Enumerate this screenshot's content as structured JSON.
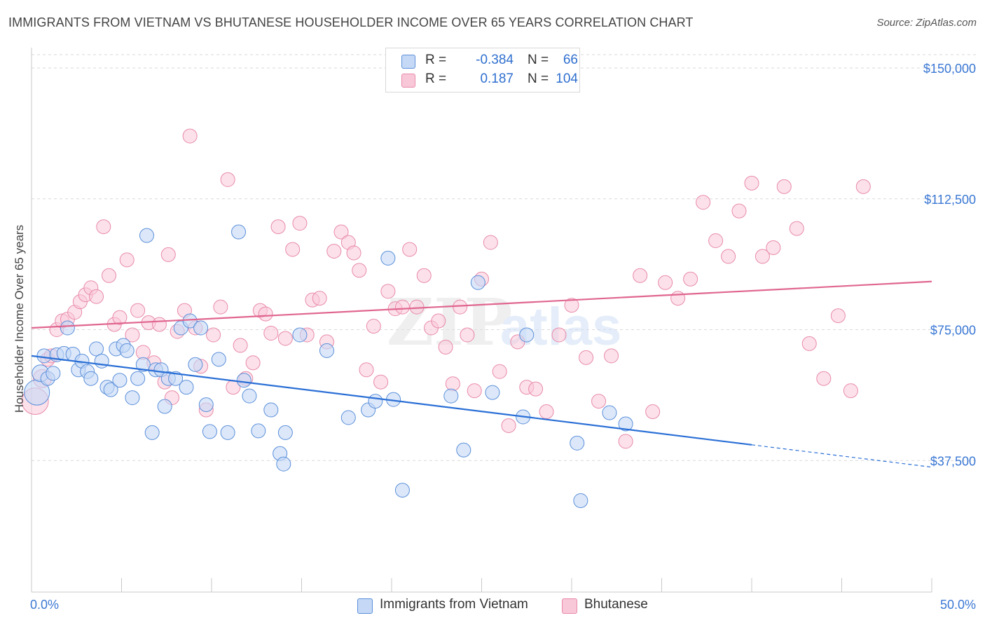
{
  "title": "IMMIGRANTS FROM VIETNAM VS BHUTANESE HOUSEHOLDER INCOME OVER 65 YEARS CORRELATION CHART",
  "source": "Source: ZipAtlas.com",
  "watermark": {
    "zip": "ZIP",
    "atlas": "atlas"
  },
  "legend": {
    "rows": [
      {
        "r_label": "R =",
        "r_value": "-0.384",
        "n_label": "N =",
        "n_value": "66"
      },
      {
        "r_label": "R =",
        "r_value": "0.187",
        "n_label": "N =",
        "n_value": "104"
      }
    ]
  },
  "bottom_legend": [
    "Immigrants from Vietnam",
    "Bhutanese"
  ],
  "colors": {
    "vietnam_fill": "#c5d9f7",
    "vietnam_stroke": "#5b8fd9",
    "vietnam_line": "#2a6fd6",
    "bhutan_fill": "#f9c8d8",
    "bhutan_stroke": "#e88aa8",
    "bhutan_line": "#e0668f",
    "tick_label": "#3b78d4",
    "grid": "#d9d9d9"
  },
  "chart_data": {
    "type": "scatter",
    "title": "IMMIGRANTS FROM VIETNAM VS BHUTANESE HOUSEHOLDER INCOME OVER 65 YEARS CORRELATION CHART",
    "xlabel": "",
    "ylabel": "Householder Income Over 65 years",
    "xlim": [
      0,
      50
    ],
    "ylim": [
      0,
      157000
    ],
    "x_tick_labels": [
      "0.0%",
      "50.0%"
    ],
    "y_ticks": [
      37500,
      75000,
      112500,
      150000
    ],
    "y_tick_labels": [
      "$37,500",
      "$75,000",
      "$112,500",
      "$150,000"
    ],
    "grid": true,
    "series": [
      {
        "name": "Immigrants from Vietnam",
        "trend": {
          "x0": 0,
          "y0": 67500,
          "x1": 40,
          "y1": 42000,
          "dash_to_x": 50,
          "dash_to_y": 35600
        },
        "points": [
          [
            0.3,
            57000,
            1.8
          ],
          [
            0.5,
            62500,
            1.2
          ],
          [
            0.7,
            67500,
            1
          ],
          [
            0.9,
            61000,
            1
          ],
          [
            1.2,
            62500,
            1
          ],
          [
            1.4,
            67800,
            1
          ],
          [
            1.8,
            68200,
            1
          ],
          [
            2.0,
            75500,
            1
          ],
          [
            2.3,
            68000,
            1
          ],
          [
            2.6,
            63500,
            1
          ],
          [
            2.8,
            66000,
            1
          ],
          [
            3.1,
            63000,
            1
          ],
          [
            3.3,
            61000,
            1
          ],
          [
            3.6,
            69500,
            1
          ],
          [
            3.9,
            66000,
            1
          ],
          [
            4.2,
            58500,
            1
          ],
          [
            4.4,
            57800,
            1
          ],
          [
            4.7,
            69500,
            1
          ],
          [
            4.9,
            60500,
            1
          ],
          [
            5.1,
            70500,
            1
          ],
          [
            5.3,
            69000,
            1
          ],
          [
            5.6,
            55500,
            1
          ],
          [
            5.9,
            61000,
            1
          ],
          [
            6.2,
            65000,
            1
          ],
          [
            6.4,
            102000,
            1
          ],
          [
            6.7,
            45500,
            1
          ],
          [
            6.9,
            63500,
            1
          ],
          [
            7.2,
            63500,
            1
          ],
          [
            7.4,
            53000,
            1
          ],
          [
            7.6,
            61000,
            1
          ],
          [
            8.0,
            61000,
            1
          ],
          [
            8.3,
            75500,
            1
          ],
          [
            8.6,
            58500,
            1
          ],
          [
            8.8,
            77500,
            1
          ],
          [
            9.1,
            65000,
            1
          ],
          [
            9.4,
            75500,
            1
          ],
          [
            9.7,
            53500,
            1
          ],
          [
            9.9,
            45800,
            1
          ],
          [
            10.4,
            66500,
            1
          ],
          [
            10.9,
            45500,
            1
          ],
          [
            11.5,
            103000,
            1
          ],
          [
            11.8,
            60500,
            1
          ],
          [
            12.1,
            56000,
            1
          ],
          [
            12.6,
            46000,
            1
          ],
          [
            13.3,
            52000,
            1
          ],
          [
            13.8,
            39500,
            1
          ],
          [
            14.0,
            36500,
            1
          ],
          [
            14.1,
            45500,
            1
          ],
          [
            14.9,
            73500,
            1
          ],
          [
            16.4,
            69000,
            1
          ],
          [
            17.6,
            49800,
            1
          ],
          [
            18.7,
            52000,
            1
          ],
          [
            19.1,
            54500,
            1
          ],
          [
            19.8,
            95500,
            1
          ],
          [
            20.1,
            55000,
            1
          ],
          [
            20.6,
            29000,
            1
          ],
          [
            23.3,
            56000,
            1
          ],
          [
            24.0,
            40500,
            1
          ],
          [
            24.8,
            88500,
            1
          ],
          [
            25.6,
            57000,
            1
          ],
          [
            27.3,
            50000,
            1
          ],
          [
            27.5,
            73500,
            1
          ],
          [
            30.3,
            42500,
            1
          ],
          [
            30.5,
            26000,
            1
          ],
          [
            32.1,
            51200,
            1
          ],
          [
            33.0,
            48000,
            1
          ]
        ]
      },
      {
        "name": "Bhutanese",
        "trend": {
          "x0": 0,
          "y0": 75500,
          "x1": 50,
          "y1": 88800
        },
        "points": [
          [
            0.2,
            54500,
            1.9
          ],
          [
            0.6,
            61000,
            1.3
          ],
          [
            0.9,
            66500,
            1
          ],
          [
            1.1,
            67500,
            1
          ],
          [
            1.4,
            75000,
            1
          ],
          [
            1.7,
            77500,
            1
          ],
          [
            2.0,
            78000,
            1
          ],
          [
            2.4,
            80000,
            1
          ],
          [
            2.7,
            83000,
            1
          ],
          [
            3.0,
            85000,
            1
          ],
          [
            3.3,
            87000,
            1
          ],
          [
            3.6,
            84500,
            1
          ],
          [
            4.0,
            104500,
            1
          ],
          [
            4.3,
            90500,
            1
          ],
          [
            4.6,
            76500,
            1
          ],
          [
            4.9,
            78500,
            1
          ],
          [
            5.3,
            95000,
            1
          ],
          [
            5.6,
            73500,
            1
          ],
          [
            5.9,
            80500,
            1
          ],
          [
            6.2,
            68500,
            1
          ],
          [
            6.5,
            77000,
            1
          ],
          [
            6.8,
            65500,
            1
          ],
          [
            7.1,
            76500,
            1
          ],
          [
            7.4,
            60000,
            1
          ],
          [
            7.6,
            96500,
            1
          ],
          [
            7.8,
            55500,
            1
          ],
          [
            8.1,
            74500,
            1
          ],
          [
            8.5,
            80500,
            1
          ],
          [
            8.8,
            130500,
            1
          ],
          [
            9.1,
            75500,
            1
          ],
          [
            9.4,
            64500,
            1
          ],
          [
            9.7,
            52000,
            1
          ],
          [
            10.1,
            73500,
            1
          ],
          [
            10.5,
            81500,
            1
          ],
          [
            10.9,
            118000,
            1
          ],
          [
            11.2,
            58500,
            1
          ],
          [
            11.6,
            70500,
            1
          ],
          [
            11.9,
            61000,
            1
          ],
          [
            12.3,
            65500,
            1
          ],
          [
            12.7,
            80500,
            1
          ],
          [
            13.0,
            79500,
            1
          ],
          [
            13.3,
            74000,
            1
          ],
          [
            13.7,
            104500,
            1
          ],
          [
            14.1,
            72500,
            1
          ],
          [
            14.5,
            98000,
            1
          ],
          [
            14.9,
            105500,
            1
          ],
          [
            15.3,
            73500,
            1
          ],
          [
            15.6,
            83500,
            1
          ],
          [
            16.0,
            84000,
            1
          ],
          [
            16.4,
            71500,
            1
          ],
          [
            16.8,
            97500,
            1
          ],
          [
            17.2,
            103000,
            1
          ],
          [
            17.6,
            100000,
            1
          ],
          [
            17.9,
            97000,
            1
          ],
          [
            18.2,
            92000,
            1
          ],
          [
            18.6,
            63500,
            1
          ],
          [
            19.0,
            76000,
            1
          ],
          [
            19.4,
            60000,
            1
          ],
          [
            19.8,
            86000,
            1
          ],
          [
            20.2,
            81000,
            1
          ],
          [
            20.6,
            81500,
            1
          ],
          [
            21.0,
            98000,
            1
          ],
          [
            21.4,
            81500,
            1
          ],
          [
            21.8,
            90500,
            1
          ],
          [
            22.2,
            75500,
            1
          ],
          [
            22.6,
            77500,
            1
          ],
          [
            23.0,
            70000,
            1
          ],
          [
            23.4,
            59500,
            1
          ],
          [
            23.8,
            81500,
            1
          ],
          [
            24.2,
            73500,
            1
          ],
          [
            24.6,
            57500,
            1
          ],
          [
            25.0,
            89500,
            1
          ],
          [
            25.5,
            100000,
            1
          ],
          [
            26.0,
            63000,
            1
          ],
          [
            26.5,
            47500,
            1
          ],
          [
            27.0,
            71500,
            1
          ],
          [
            27.5,
            58500,
            1
          ],
          [
            28.0,
            58000,
            1
          ],
          [
            28.6,
            51500,
            1
          ],
          [
            29.3,
            73500,
            1
          ],
          [
            30.0,
            82000,
            1
          ],
          [
            30.8,
            67000,
            1
          ],
          [
            31.5,
            54500,
            1
          ],
          [
            32.2,
            67500,
            1
          ],
          [
            33.0,
            43000,
            1
          ],
          [
            33.8,
            90500,
            1
          ],
          [
            34.5,
            51500,
            1
          ],
          [
            35.2,
            88500,
            1
          ],
          [
            35.9,
            84000,
            1
          ],
          [
            36.6,
            89500,
            1
          ],
          [
            37.3,
            111500,
            1
          ],
          [
            38.0,
            100500,
            1
          ],
          [
            38.7,
            96000,
            1
          ],
          [
            39.3,
            109000,
            1
          ],
          [
            40.0,
            117000,
            1
          ],
          [
            40.6,
            96000,
            1
          ],
          [
            41.2,
            98500,
            1
          ],
          [
            41.8,
            116000,
            1
          ],
          [
            42.5,
            104000,
            1
          ],
          [
            43.2,
            71000,
            1
          ],
          [
            44.0,
            61000,
            1
          ],
          [
            44.8,
            79000,
            1
          ],
          [
            45.5,
            57500,
            1
          ],
          [
            46.2,
            116000,
            1
          ]
        ]
      }
    ]
  }
}
